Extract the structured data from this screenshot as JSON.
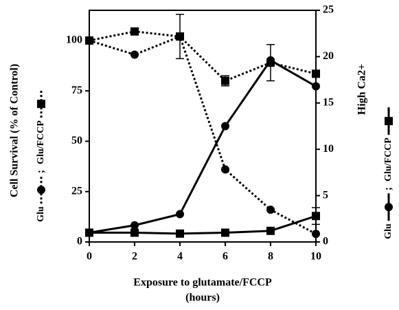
{
  "chart_data": {
    "type": "line",
    "xlabel": [
      "Exposure to glutamate/FCCP",
      "(hours)"
    ],
    "ylabel": "Cell Survival (% of Control)",
    "y2label": "High  Ca2+",
    "legend_separator": ";",
    "x": [
      0,
      2,
      4,
      6,
      8,
      10
    ],
    "xlim": [
      0,
      10
    ],
    "xticks": [
      0,
      2,
      4,
      6,
      8,
      10
    ],
    "ylim": [
      0,
      115
    ],
    "yticks": [
      0,
      25,
      50,
      75,
      100
    ],
    "y2lim": [
      0,
      25
    ],
    "y2ticks": [
      0,
      5,
      10,
      15,
      20,
      25
    ],
    "series": [
      {
        "name": "Glu",
        "color": "#000000",
        "style": "dotted",
        "marker": "circle",
        "axis": "y",
        "values": [
          100,
          93,
          102,
          36,
          16,
          4
        ]
      },
      {
        "name": "Glu/FCCP",
        "color": "#000000",
        "style": "dotted",
        "marker": "square",
        "axis": "y",
        "values": [
          100,
          104.5,
          102,
          80,
          89,
          83.5
        ],
        "errors": [
          null,
          null,
          11,
          2.5,
          9,
          null
        ]
      },
      {
        "name": "Glu",
        "color": "#000000",
        "style": "solid",
        "marker": "circle",
        "axis": "y2",
        "values": [
          1.0,
          1.8,
          3.0,
          12.5,
          19.6,
          16.8
        ]
      },
      {
        "name": "Glu/FCCP",
        "color": "#000000",
        "style": "solid",
        "marker": "square",
        "axis": "y2",
        "values": [
          1.0,
          1.0,
          0.9,
          1.0,
          1.2,
          2.8
        ],
        "errors": [
          null,
          null,
          null,
          null,
          null,
          0.9
        ]
      }
    ]
  }
}
